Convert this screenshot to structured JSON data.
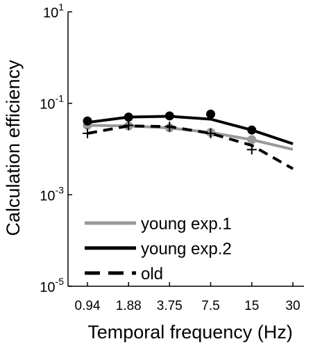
{
  "chart_data": {
    "type": "line",
    "xlabel": "Temporal frequency (Hz)",
    "ylabel": "Calculation efficiency",
    "x_scale": "log",
    "y_scale": "log",
    "categories": [
      "0.94",
      "1.88",
      "3.75",
      "7.5",
      "15",
      "30"
    ],
    "x": [
      0.94,
      1.88,
      3.75,
      7.5,
      15,
      30
    ],
    "ylim": [
      1e-05,
      10
    ],
    "y_ticks": [
      {
        "base": "10",
        "exp": "1"
      },
      {
        "base": "10",
        "exp": "-1"
      },
      {
        "base": "10",
        "exp": "-3"
      },
      {
        "base": "10",
        "exp": "-5"
      }
    ],
    "grid": false,
    "legend_position": "bottom-left",
    "series": [
      {
        "name": "young exp.1",
        "color": "#999999",
        "line_style": "solid",
        "marker": "circle",
        "fit": [
          0.033,
          0.032,
          0.029,
          0.023,
          0.016,
          0.0098
        ],
        "points": [
          0.033,
          0.032,
          0.029,
          0.023,
          0.016,
          null
        ]
      },
      {
        "name": "young exp.2",
        "color": "#000000",
        "line_style": "solid",
        "marker": "circle",
        "fit": [
          0.038,
          0.05,
          0.052,
          0.045,
          0.026,
          0.013
        ],
        "points": [
          0.041,
          0.05,
          0.053,
          0.058,
          0.026,
          null
        ]
      },
      {
        "name": "old",
        "color": "#000000",
        "line_style": "dashed",
        "marker": "plus",
        "fit": [
          0.022,
          0.032,
          0.031,
          0.022,
          0.012,
          0.0037
        ],
        "points": [
          0.022,
          0.033,
          0.031,
          0.022,
          0.0097,
          null
        ]
      }
    ]
  }
}
